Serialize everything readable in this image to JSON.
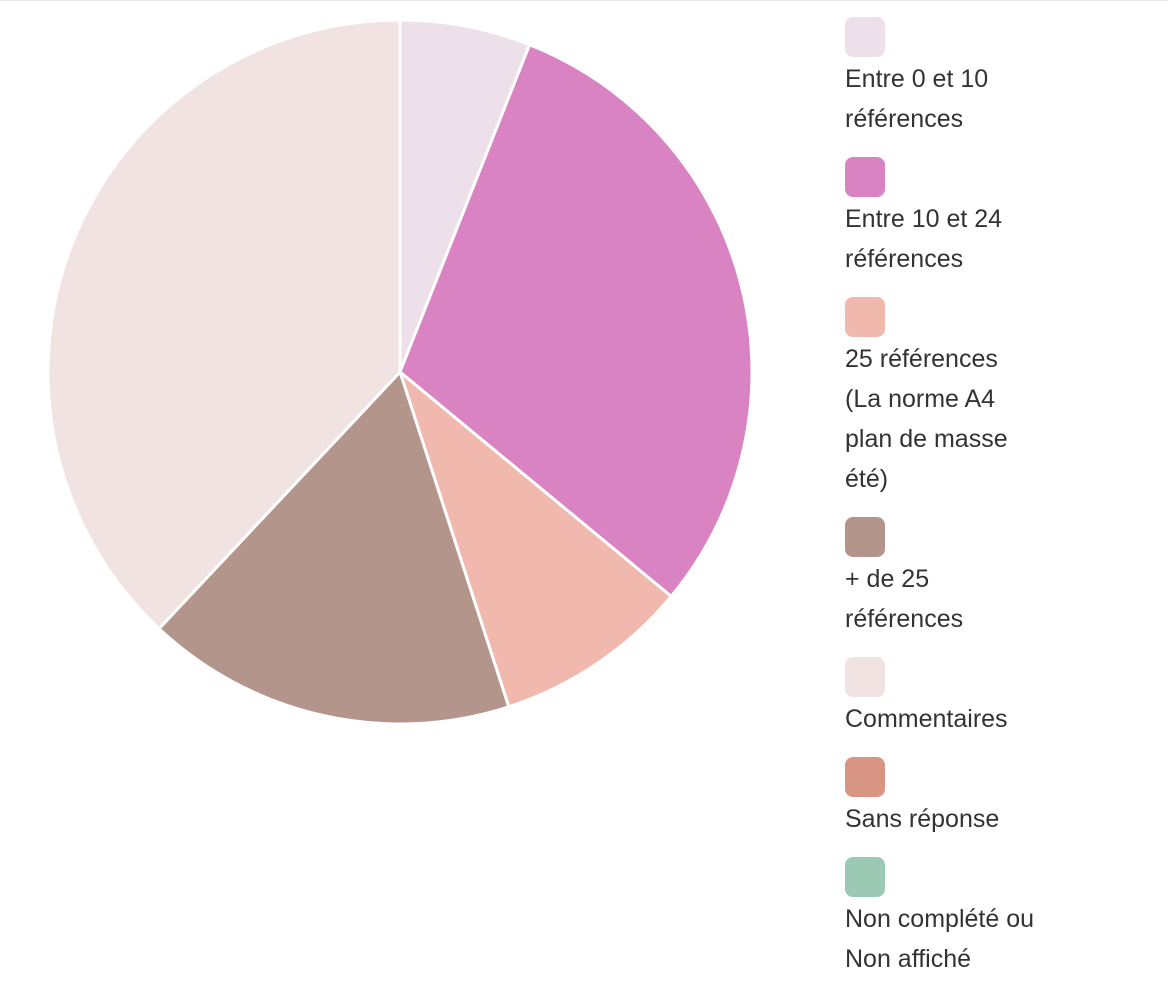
{
  "chart_data": {
    "type": "pie",
    "series_name": "",
    "slices": [
      {
        "label": "Entre 0 et 10 références",
        "value": 6,
        "color": "#ede0ea"
      },
      {
        "label": "Entre 10 et 24 références",
        "value": 30,
        "color": "#d983c3"
      },
      {
        "label": "25 références (La norme A4 plan de masse été)",
        "value": 9,
        "color": "#f1b8ad"
      },
      {
        "label": "+ de 25 références",
        "value": 17,
        "color": "#b3958c"
      },
      {
        "label": "Commentaires",
        "value": 38,
        "color": "#f0e3e2"
      },
      {
        "label": "Sans réponse",
        "value": 0,
        "color": "#d99584"
      },
      {
        "label": "Non complété ou Non affiché",
        "value": 0,
        "color": "#9cc9b4"
      }
    ],
    "legend_position": "right",
    "start_angle": "top",
    "direction": "clockwise"
  }
}
